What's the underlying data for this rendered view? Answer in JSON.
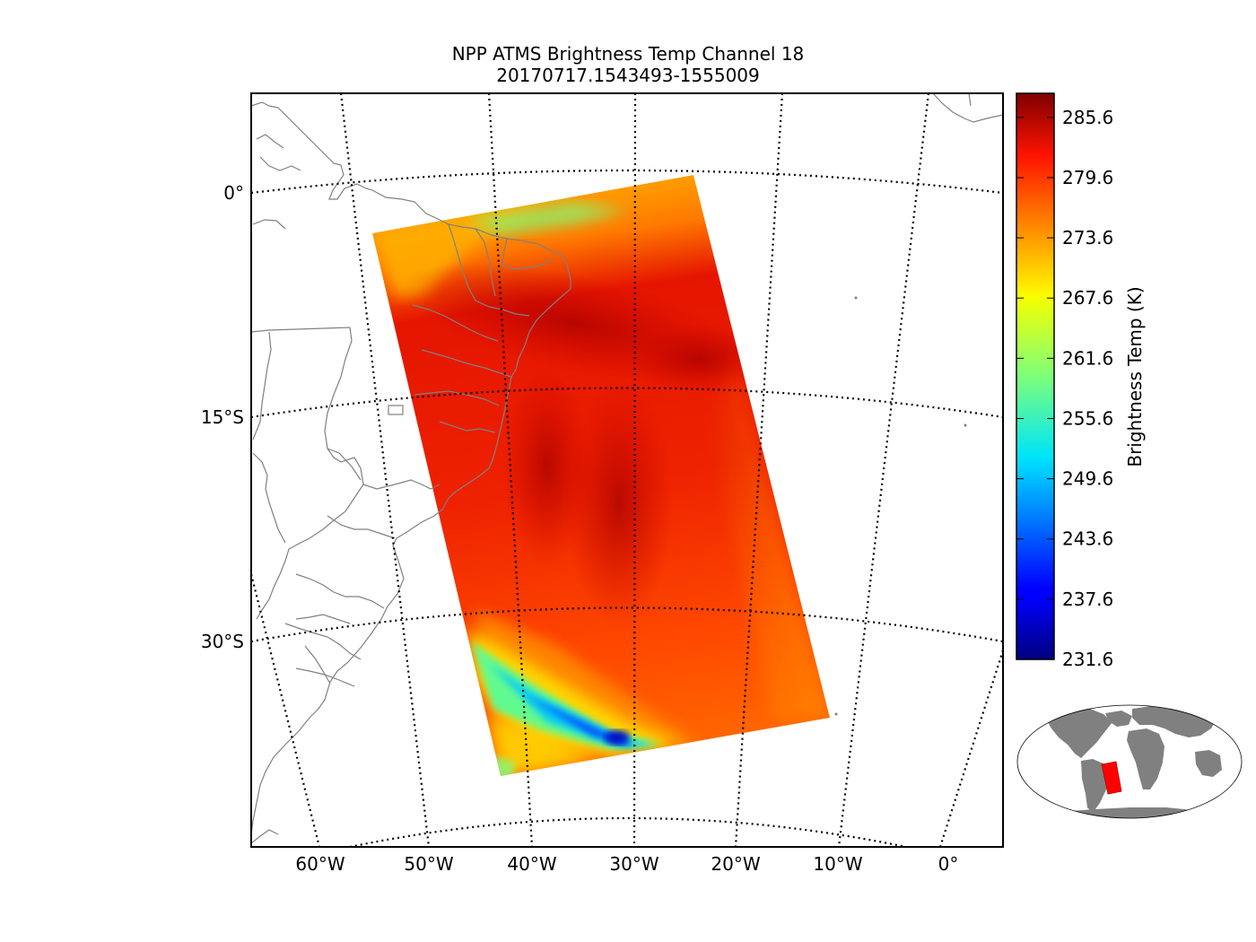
{
  "title": {
    "line1": "NPP ATMS Brightness Temp Channel 18",
    "line2": "20170717.1543493-1555009"
  },
  "map": {
    "lat_labels": [
      "0°",
      "15°S",
      "30°S"
    ],
    "lon_labels": [
      "60°W",
      "50°W",
      "40°W",
      "30°W",
      "20°W",
      "10°W",
      "0°"
    ],
    "coastline_color": "#808080",
    "graticule_style": "dotted"
  },
  "colorbar": {
    "label": "Brightness Temp (K)",
    "colormap": "jet",
    "ticks": [
      "285.6",
      "279.6",
      "273.6",
      "267.6",
      "261.6",
      "255.6",
      "249.6",
      "243.6",
      "237.6",
      "231.6"
    ],
    "min": 231.6,
    "max": 288.0
  },
  "inset": {
    "land_color": "#808080",
    "swath_color": "#ff0000"
  }
}
